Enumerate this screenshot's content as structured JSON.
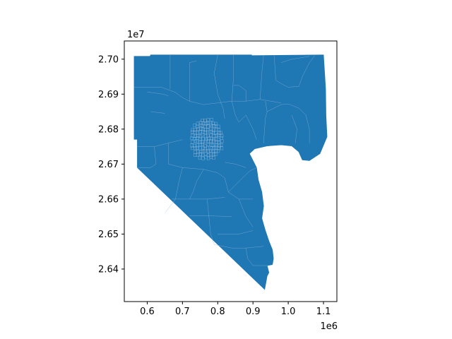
{
  "chart_data": {
    "type": "choropleth",
    "title": "",
    "xlabel": "",
    "ylabel": "",
    "x_offset_label": "1e6",
    "y_offset_label": "1e7",
    "xlim": [
      0.535,
      1.138
    ],
    "ylim": [
      26.307,
      27.052
    ],
    "x_ticks": [
      0.6,
      0.7,
      0.8,
      0.9,
      1.0,
      1.1
    ],
    "x_tick_labels": [
      "0.6",
      "0.7",
      "0.8",
      "0.9",
      "1.0",
      "1.1"
    ],
    "y_ticks": [
      26.4,
      26.5,
      26.6,
      26.7,
      26.8,
      26.9,
      27.0
    ],
    "y_tick_labels": [
      "2.64",
      "2.65",
      "2.66",
      "2.67",
      "2.68",
      "2.69",
      "2.70"
    ],
    "fill_color": "#1f77b4",
    "edge_color": "#8fb8dc",
    "grid": false,
    "legend": "none",
    "outline": [
      [
        0.563,
        27.008
      ],
      [
        0.608,
        27.008
      ],
      [
        0.61,
        27.012
      ],
      [
        0.896,
        27.012
      ],
      [
        0.896,
        27.01
      ],
      [
        1.1,
        27.012
      ],
      [
        1.106,
        26.915
      ],
      [
        1.107,
        26.84
      ],
      [
        1.11,
        26.778
      ],
      [
        1.09,
        26.73
      ],
      [
        1.06,
        26.71
      ],
      [
        1.04,
        26.712
      ],
      [
        1.03,
        26.735
      ],
      [
        1.01,
        26.752
      ],
      [
        0.98,
        26.755
      ],
      [
        0.94,
        26.752
      ],
      [
        0.905,
        26.744
      ],
      [
        0.89,
        26.73
      ],
      [
        0.9,
        26.71
      ],
      [
        0.91,
        26.69
      ],
      [
        0.915,
        26.655
      ],
      [
        0.925,
        26.62
      ],
      [
        0.93,
        26.58
      ],
      [
        0.925,
        26.545
      ],
      [
        0.935,
        26.51
      ],
      [
        0.945,
        26.48
      ],
      [
        0.955,
        26.455
      ],
      [
        0.958,
        26.43
      ],
      [
        0.955,
        26.413
      ],
      [
        0.94,
        26.41
      ],
      [
        0.945,
        26.39
      ],
      [
        0.94,
        26.38
      ],
      [
        0.933,
        26.342
      ],
      [
        0.572,
        26.69
      ],
      [
        0.572,
        26.771
      ],
      [
        0.563,
        26.771
      ]
    ],
    "boundaries": [
      [
        [
          0.563,
          26.92
        ],
        [
          0.64,
          26.92
        ],
        [
          0.68,
          26.905
        ],
        [
          0.7,
          26.89
        ],
        [
          0.72,
          26.88
        ]
      ],
      [
        [
          0.6,
          26.906
        ],
        [
          0.645,
          26.9
        ],
        [
          0.66,
          26.895
        ]
      ],
      [
        [
          0.61,
          26.85
        ],
        [
          0.65,
          26.845
        ]
      ],
      [
        [
          0.72,
          26.88
        ],
        [
          0.72,
          26.99
        ],
        [
          0.74,
          26.995
        ]
      ],
      [
        [
          0.665,
          26.915
        ],
        [
          0.665,
          27.012
        ]
      ],
      [
        [
          0.72,
          26.88
        ],
        [
          0.76,
          26.87
        ],
        [
          0.8,
          26.875
        ],
        [
          0.84,
          26.88
        ]
      ],
      [
        [
          0.84,
          26.88
        ],
        [
          0.88,
          26.88
        ],
        [
          0.92,
          26.885
        ],
        [
          0.98,
          26.875
        ]
      ],
      [
        [
          0.84,
          26.88
        ],
        [
          0.845,
          26.95
        ],
        [
          0.845,
          27.012
        ]
      ],
      [
        [
          0.8,
          27.012
        ],
        [
          0.79,
          26.96
        ],
        [
          0.8,
          26.9
        ],
        [
          0.815,
          26.86
        ],
        [
          0.82,
          26.83
        ]
      ],
      [
        [
          0.88,
          26.88
        ],
        [
          0.88,
          26.91
        ],
        [
          0.86,
          26.925
        ],
        [
          0.845,
          26.925
        ]
      ],
      [
        [
          0.92,
          26.885
        ],
        [
          0.925,
          26.96
        ],
        [
          0.93,
          27.01
        ]
      ],
      [
        [
          0.96,
          27.011
        ],
        [
          0.965,
          26.94
        ],
        [
          0.98,
          26.93
        ],
        [
          1.0,
          26.92
        ],
        [
          1.03,
          26.922
        ]
      ],
      [
        [
          0.98,
          26.99
        ],
        [
          1.01,
          27.0
        ],
        [
          1.06,
          27.008
        ]
      ],
      [
        [
          1.03,
          26.922
        ],
        [
          1.04,
          26.95
        ],
        [
          1.06,
          26.99
        ],
        [
          1.075,
          27.01
        ]
      ],
      [
        [
          0.93,
          26.76
        ],
        [
          0.935,
          26.83
        ],
        [
          0.94,
          26.85
        ],
        [
          0.98,
          26.87
        ],
        [
          1.0,
          26.872
        ]
      ],
      [
        [
          0.94,
          26.85
        ],
        [
          0.935,
          26.88
        ]
      ],
      [
        [
          1.0,
          26.872
        ],
        [
          1.03,
          26.86
        ],
        [
          1.05,
          26.84
        ],
        [
          1.06,
          26.8
        ],
        [
          1.06,
          26.76
        ]
      ],
      [
        [
          1.02,
          26.76
        ],
        [
          1.025,
          26.8
        ],
        [
          1.01,
          26.84
        ]
      ],
      [
        [
          0.88,
          26.84
        ],
        [
          0.9,
          26.8
        ],
        [
          0.91,
          26.77
        ]
      ],
      [
        [
          0.84,
          26.88
        ],
        [
          0.85,
          26.84
        ],
        [
          0.86,
          26.82
        ],
        [
          0.88,
          26.84
        ]
      ],
      [
        [
          0.572,
          26.75
        ],
        [
          0.62,
          26.75
        ],
        [
          0.66,
          26.76
        ],
        [
          0.7,
          26.77
        ]
      ],
      [
        [
          0.62,
          26.75
        ],
        [
          0.625,
          26.7
        ],
        [
          0.61,
          26.69
        ],
        [
          0.572,
          26.69
        ]
      ],
      [
        [
          0.66,
          26.76
        ],
        [
          0.66,
          26.7
        ],
        [
          0.7,
          26.69
        ]
      ],
      [
        [
          0.7,
          26.69
        ],
        [
          0.76,
          26.685
        ],
        [
          0.8,
          26.675
        ],
        [
          0.82,
          26.66
        ]
      ],
      [
        [
          0.76,
          26.685
        ],
        [
          0.74,
          26.65
        ],
        [
          0.73,
          26.62
        ],
        [
          0.72,
          26.6
        ]
      ],
      [
        [
          0.7,
          26.69
        ],
        [
          0.69,
          26.65
        ],
        [
          0.68,
          26.6
        ],
        [
          0.65,
          26.56
        ]
      ],
      [
        [
          0.67,
          26.6
        ],
        [
          0.72,
          26.6
        ],
        [
          0.77,
          26.6
        ],
        [
          0.82,
          26.605
        ]
      ],
      [
        [
          0.77,
          26.6
        ],
        [
          0.775,
          26.55
        ],
        [
          0.78,
          26.5
        ],
        [
          0.79,
          26.47
        ]
      ],
      [
        [
          0.72,
          26.552
        ],
        [
          0.78,
          26.552
        ],
        [
          0.84,
          26.55
        ]
      ],
      [
        [
          0.82,
          26.66
        ],
        [
          0.83,
          26.62
        ],
        [
          0.86,
          26.6
        ],
        [
          0.9,
          26.6
        ]
      ],
      [
        [
          0.86,
          26.6
        ],
        [
          0.88,
          26.55
        ],
        [
          0.9,
          26.52
        ]
      ],
      [
        [
          0.79,
          26.47
        ],
        [
          0.84,
          26.46
        ],
        [
          0.88,
          26.46
        ],
        [
          0.93,
          26.465
        ]
      ],
      [
        [
          0.88,
          26.46
        ],
        [
          0.885,
          26.43
        ],
        [
          0.9,
          26.41
        ],
        [
          0.94,
          26.41
        ]
      ],
      [
        [
          0.8,
          26.5
        ],
        [
          0.86,
          26.5
        ],
        [
          0.9,
          26.51
        ]
      ],
      [
        [
          0.83,
          26.62
        ],
        [
          0.86,
          26.65
        ],
        [
          0.89,
          26.68
        ],
        [
          0.91,
          26.69
        ]
      ],
      [
        [
          0.82,
          26.705
        ],
        [
          0.85,
          26.7
        ],
        [
          0.88,
          26.69
        ]
      ]
    ],
    "urban_center": [
      0.765,
      26.765
    ],
    "urban_radius": [
      0.048,
      0.06
    ]
  }
}
